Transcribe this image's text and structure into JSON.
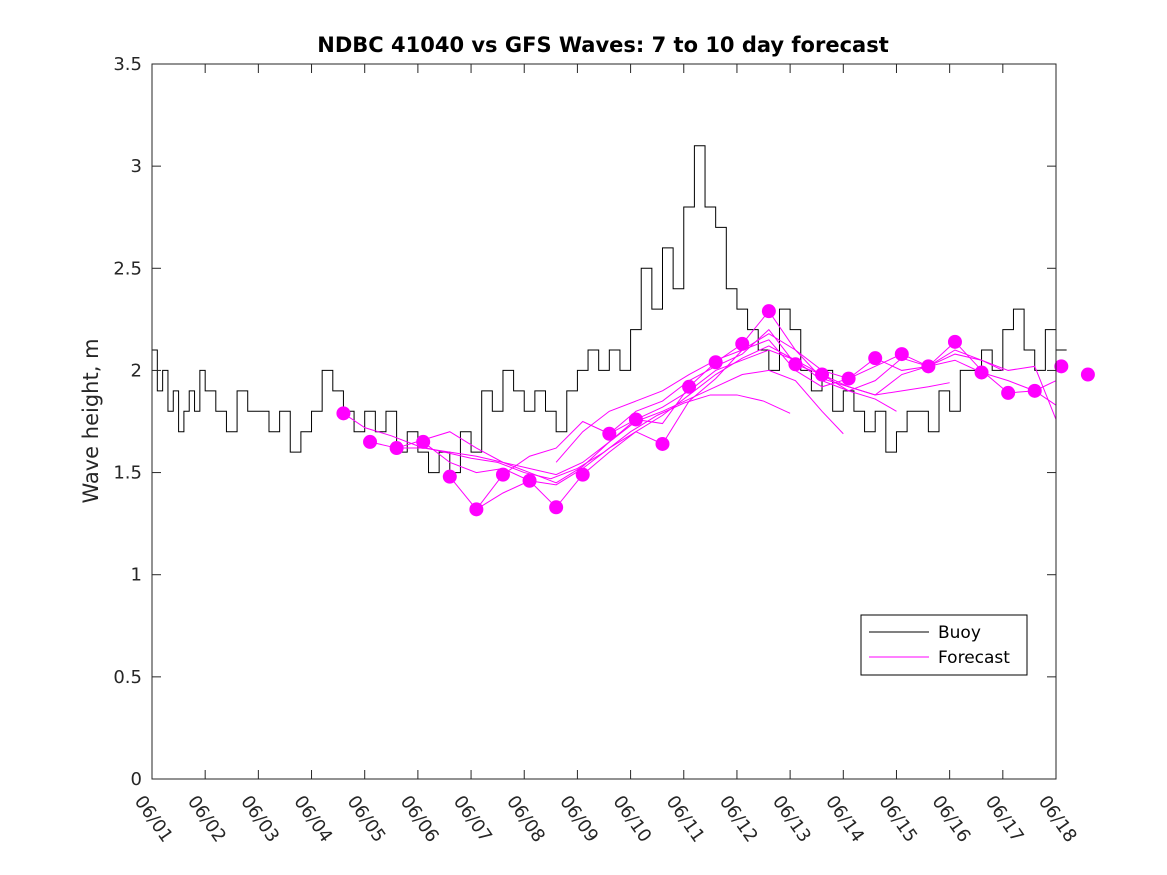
{
  "chart_data": {
    "type": "line",
    "title": "NDBC 41040 vs GFS Waves: 7 to 10 day forecast",
    "xlabel": "",
    "ylabel": "Wave height, m",
    "x_axis": {
      "unit": "date (MM/DD)",
      "range": [
        "06/01",
        "06/18"
      ],
      "ticks": [
        "06/01",
        "06/02",
        "06/03",
        "06/04",
        "06/05",
        "06/06",
        "06/07",
        "06/08",
        "06/09",
        "06/10",
        "06/11",
        "06/12",
        "06/13",
        "06/14",
        "06/15",
        "06/16",
        "06/17",
        "06/18"
      ]
    },
    "y_axis": {
      "range": [
        0,
        3.5
      ],
      "ticks": [
        "0",
        "0.5",
        "1",
        "1.5",
        "2",
        "2.5",
        "3",
        "3.5"
      ]
    },
    "grid": false,
    "legend": {
      "placement": "bottom-right",
      "entries": [
        {
          "label": "Buoy",
          "color": "#000000"
        },
        {
          "label": "Forecast",
          "color": "#ff00ff"
        }
      ]
    },
    "colors": {
      "buoy": "#000000",
      "forecast": "#ff00ff"
    },
    "series": [
      {
        "name": "Buoy",
        "style": "step-line",
        "x_days_from_06_01": [
          0.0,
          0.1,
          0.2,
          0.3,
          0.4,
          0.5,
          0.6,
          0.7,
          0.8,
          0.9,
          1.0,
          1.2,
          1.4,
          1.6,
          1.8,
          2.0,
          2.2,
          2.4,
          2.6,
          2.8,
          3.0,
          3.2,
          3.4,
          3.6,
          3.8,
          4.0,
          4.2,
          4.4,
          4.6,
          4.8,
          5.0,
          5.2,
          5.4,
          5.6,
          5.8,
          6.0,
          6.2,
          6.4,
          6.6,
          6.8,
          7.0,
          7.2,
          7.4,
          7.6,
          7.8,
          8.0,
          8.2,
          8.4,
          8.6,
          8.8,
          9.0,
          9.2,
          9.4,
          9.6,
          9.8,
          10.0,
          10.2,
          10.4,
          10.6,
          10.8,
          11.0,
          11.2,
          11.4,
          11.6,
          11.8,
          12.0,
          12.2,
          12.4,
          12.6,
          12.8,
          13.0,
          13.2,
          13.4,
          13.6,
          13.8,
          14.0,
          14.2,
          14.4,
          14.6,
          14.8,
          15.0,
          15.2,
          15.4,
          15.6,
          15.8,
          16.0,
          16.2,
          16.4,
          16.6,
          16.8,
          17.0
        ],
        "values": [
          2.1,
          1.9,
          2.0,
          1.8,
          1.9,
          1.7,
          1.8,
          1.9,
          1.8,
          2.0,
          1.9,
          1.8,
          1.7,
          1.9,
          1.8,
          1.8,
          1.7,
          1.8,
          1.6,
          1.7,
          1.8,
          2.0,
          1.9,
          1.8,
          1.7,
          1.8,
          1.7,
          1.8,
          1.6,
          1.7,
          1.6,
          1.5,
          1.6,
          1.5,
          1.7,
          1.6,
          1.9,
          1.8,
          2.0,
          1.9,
          1.8,
          1.9,
          1.8,
          1.7,
          1.9,
          2.0,
          2.1,
          2.0,
          2.1,
          2.0,
          2.2,
          2.5,
          2.3,
          2.6,
          2.4,
          2.8,
          3.1,
          2.8,
          2.7,
          2.4,
          2.3,
          2.2,
          2.1,
          2.0,
          2.3,
          2.2,
          2.0,
          1.9,
          2.0,
          1.8,
          1.9,
          1.8,
          1.7,
          1.8,
          1.6,
          1.7,
          1.8,
          1.8,
          1.7,
          1.9,
          1.8,
          2.0,
          2.0,
          2.1,
          2.0,
          2.2,
          2.3,
          2.1,
          2.0,
          2.2,
          2.1
        ]
      },
      {
        "name": "Forecast",
        "style": "lines-with-markers",
        "runs": [
          {
            "x": [
              3.6,
              4.0,
              4.5,
              5.0,
              5.5,
              6.0,
              6.5,
              7.0,
              7.5,
              8.0,
              8.5,
              9.0,
              9.5,
              10.0,
              10.5,
              11.0,
              11.5,
              12.0
            ],
            "y": [
              1.79,
              1.72,
              1.68,
              1.63,
              1.6,
              1.57,
              1.55,
              1.5,
              1.47,
              1.52,
              1.6,
              1.7,
              1.78,
              1.84,
              1.88,
              1.88,
              1.85,
              1.79
            ]
          },
          {
            "x": [
              4.1,
              4.6,
              5.1,
              5.6,
              6.1,
              6.6,
              7.1,
              7.6,
              8.1,
              8.6,
              9.1,
              9.6,
              10.1,
              10.6,
              11.1,
              11.6,
              12.1,
              12.6,
              13.0
            ],
            "y": [
              1.65,
              1.62,
              1.62,
              1.6,
              1.58,
              1.55,
              1.52,
              1.49,
              1.55,
              1.65,
              1.75,
              1.8,
              1.86,
              1.92,
              1.98,
              2.0,
              1.95,
              1.8,
              1.69
            ]
          },
          {
            "x": [
              4.6,
              5.1,
              5.6,
              6.1,
              6.6,
              7.1,
              7.6,
              8.1,
              8.6,
              9.1,
              9.6,
              10.1,
              10.6,
              11.1,
              11.6,
              12.1,
              12.6,
              13.1,
              13.6,
              14.0
            ],
            "y": [
              1.62,
              1.66,
              1.7,
              1.62,
              1.55,
              1.5,
              1.45,
              1.53,
              1.65,
              1.76,
              1.82,
              1.9,
              2.0,
              2.05,
              2.1,
              2.05,
              1.95,
              1.9,
              1.86,
              1.8
            ]
          },
          {
            "x": [
              5.1,
              5.6,
              6.1,
              6.6,
              7.1,
              7.6,
              8.1,
              8.6,
              9.1,
              9.6,
              10.1,
              10.6,
              11.1,
              11.6,
              12.1,
              12.6,
              13.1,
              13.6,
              14.1,
              14.6,
              15.0
            ],
            "y": [
              1.65,
              1.55,
              1.5,
              1.52,
              1.46,
              1.44,
              1.52,
              1.62,
              1.7,
              1.78,
              1.88,
              1.98,
              2.06,
              2.12,
              2.05,
              1.98,
              1.92,
              1.88,
              1.9,
              1.92,
              1.94
            ]
          },
          {
            "x": [
              5.6,
              6.1,
              6.6,
              7.1,
              7.6,
              8.1,
              8.6,
              9.1,
              9.6,
              10.1,
              10.6,
              11.1,
              11.6,
              12.1,
              12.6,
              13.1,
              13.6,
              14.1,
              14.6,
              15.1,
              15.6,
              16.0
            ],
            "y": [
              1.48,
              1.32,
              1.4,
              1.46,
              1.33,
              1.49,
              1.6,
              1.7,
              1.64,
              1.85,
              1.96,
              2.1,
              2.18,
              2.1,
              1.96,
              1.92,
              1.88,
              1.98,
              2.02,
              2.08,
              2.05,
              2.0
            ]
          },
          {
            "x": [
              6.1,
              6.6,
              7.1,
              7.6,
              8.1,
              8.6,
              9.1,
              9.6,
              10.1,
              10.6,
              11.1,
              11.6,
              12.1,
              12.6,
              13.1,
              13.6,
              14.1,
              14.6,
              15.1,
              15.6,
              16.1,
              16.6,
              17.0
            ],
            "y": [
              1.32,
              1.49,
              1.58,
              1.62,
              1.75,
              1.69,
              1.76,
              1.74,
              1.92,
              2.04,
              2.13,
              2.29,
              2.1,
              2.0,
              1.96,
              2.02,
              2.08,
              2.02,
              2.14,
              2.0,
              1.89,
              1.9,
              1.95
            ]
          },
          {
            "x": [
              7.6,
              8.1,
              8.6,
              9.1,
              9.6,
              10.1,
              10.6,
              11.1,
              11.6,
              12.1,
              12.6,
              13.1,
              13.6,
              14.1,
              14.6,
              15.1,
              15.6,
              16.1,
              16.6,
              17.0
            ],
            "y": [
              1.55,
              1.7,
              1.8,
              1.85,
              1.9,
              1.98,
              2.05,
              2.1,
              2.15,
              2.0,
              1.92,
              1.96,
              2.06,
              2.0,
              2.02,
              2.05,
              1.99,
              1.95,
              1.9,
              1.83
            ]
          },
          {
            "x": [
              8.6,
              9.1,
              9.6,
              10.1,
              10.6,
              11.1,
              11.6,
              12.1,
              12.6,
              13.1,
              13.6,
              14.1,
              14.6,
              15.1,
              15.6,
              16.1,
              16.6,
              17.0
            ],
            "y": [
              1.69,
              1.8,
              1.85,
              1.95,
              2.02,
              2.08,
              2.2,
              2.03,
              1.98,
              1.9,
              1.95,
              2.06,
              2.02,
              2.1,
              2.05,
              2.0,
              2.02,
              1.76
            ]
          }
        ],
        "markers": {
          "x": [
            3.6,
            4.1,
            4.6,
            5.1,
            5.6,
            6.1,
            6.6,
            7.1,
            7.6,
            8.1,
            8.6,
            9.1,
            9.6,
            10.1,
            10.6,
            11.1,
            11.6,
            12.1,
            12.6,
            13.1,
            13.6,
            14.1,
            14.6,
            15.1,
            15.6,
            16.1,
            16.6,
            17.1,
            17.6
          ],
          "y": [
            1.79,
            1.65,
            1.62,
            1.65,
            1.48,
            1.32,
            1.49,
            1.46,
            1.33,
            1.49,
            1.69,
            1.76,
            1.64,
            1.92,
            2.04,
            2.13,
            2.29,
            2.03,
            1.98,
            1.96,
            2.06,
            2.08,
            2.02,
            2.14,
            1.99,
            1.89,
            1.9,
            2.02,
            1.98
          ]
        }
      }
    ]
  }
}
